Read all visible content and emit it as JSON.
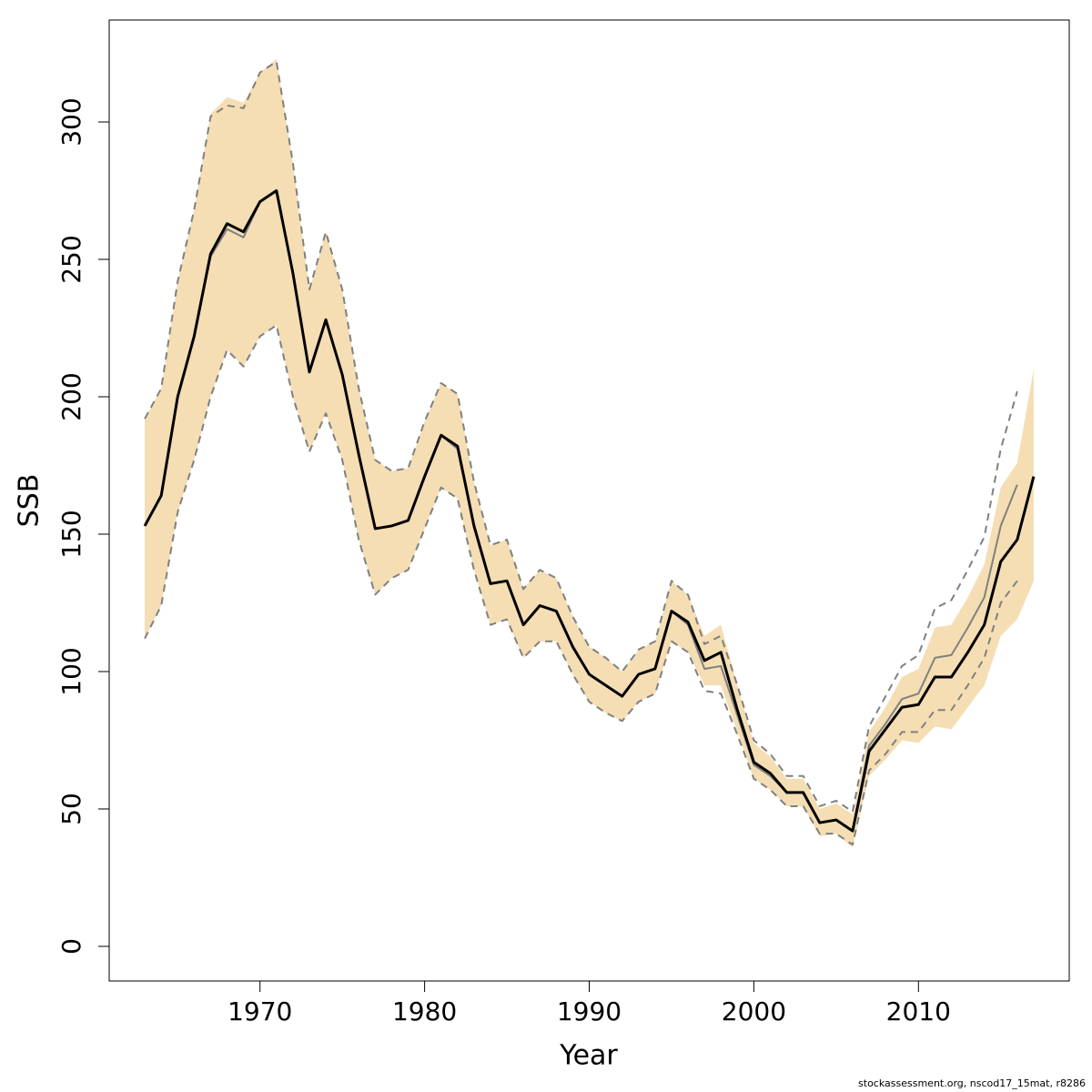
{
  "chart_data": {
    "type": "line",
    "x_label": "Year",
    "y_label": "SSB",
    "footnote": "stockassessment.org, nscod17_15mat, r8286",
    "x": [
      1963,
      1964,
      1965,
      1966,
      1967,
      1968,
      1969,
      1970,
      1971,
      1972,
      1973,
      1974,
      1975,
      1976,
      1977,
      1978,
      1979,
      1980,
      1981,
      1982,
      1983,
      1984,
      1985,
      1986,
      1987,
      1988,
      1989,
      1990,
      1991,
      1992,
      1993,
      1994,
      1995,
      1996,
      1997,
      1998,
      1999,
      2000,
      2001,
      2002,
      2003,
      2004,
      2005,
      2006,
      2007,
      2008,
      2009,
      2010,
      2011,
      2012,
      2013,
      2014,
      2015,
      2016,
      2017
    ],
    "band": {
      "color": "#f5deb3",
      "upper": [
        192,
        203,
        242,
        268,
        303,
        309,
        307,
        318,
        323,
        285,
        239,
        260,
        239,
        203,
        177,
        173,
        174,
        191,
        205,
        201,
        169,
        146,
        148,
        130,
        137,
        134,
        120,
        109,
        105,
        100,
        108,
        111,
        133,
        128,
        113,
        117,
        95,
        74,
        69,
        61,
        61,
        50,
        52,
        48,
        78,
        87,
        98,
        101,
        116,
        117,
        127,
        139,
        167,
        176,
        210
      ],
      "lower": [
        112,
        124,
        158,
        177,
        200,
        217,
        211,
        222,
        226,
        200,
        180,
        194,
        177,
        148,
        128,
        134,
        137,
        152,
        167,
        163,
        137,
        117,
        119,
        105,
        111,
        111,
        99,
        89,
        85,
        82,
        89,
        92,
        111,
        107,
        95,
        95,
        78,
        61,
        57,
        51,
        51,
        40,
        41,
        36,
        62,
        68,
        75,
        74,
        80,
        79,
        87,
        95,
        113,
        119,
        133
      ]
    },
    "series": [
      {
        "color": "#808080",
        "dashed": true,
        "width": 2,
        "values": [
          192,
          203,
          242,
          268,
          302,
          306,
          305,
          318,
          322,
          285,
          239,
          260,
          239,
          203,
          177,
          173,
          174,
          191,
          205,
          201,
          169,
          146,
          148,
          130,
          137,
          134,
          120,
          109,
          105,
          100,
          108,
          111,
          133,
          128,
          110,
          113,
          95,
          75,
          70,
          62,
          62,
          51,
          53,
          49,
          80,
          91,
          102,
          106,
          123,
          126,
          137,
          149,
          181,
          202,
          null
        ]
      },
      {
        "color": "#808080",
        "dashed": true,
        "width": 2,
        "values": [
          112,
          124,
          158,
          177,
          200,
          217,
          211,
          222,
          226,
          200,
          180,
          194,
          177,
          148,
          128,
          134,
          137,
          152,
          167,
          163,
          137,
          117,
          119,
          105,
          111,
          111,
          99,
          89,
          85,
          82,
          89,
          92,
          111,
          107,
          93,
          92,
          77,
          61,
          57,
          51,
          51,
          41,
          41,
          37,
          64,
          70,
          78,
          78,
          86,
          86,
          95,
          105,
          125,
          133,
          null
        ]
      },
      {
        "color": "#808080",
        "dashed": false,
        "width": 2,
        "values": [
          153,
          164,
          200,
          222,
          251,
          261,
          258,
          271,
          275,
          245,
          209,
          228,
          208,
          179,
          152,
          153,
          155,
          171,
          186,
          181,
          153,
          132,
          133,
          117,
          124,
          122,
          109,
          99,
          95,
          91,
          99,
          101,
          122,
          117,
          101,
          102,
          84,
          66,
          62,
          56,
          56,
          45,
          46,
          42,
          73,
          81,
          90,
          92,
          105,
          106,
          116,
          127,
          153,
          168,
          null
        ]
      },
      {
        "color": "#000000",
        "dashed": false,
        "width": 3,
        "values": [
          153,
          164,
          200,
          222,
          252,
          263,
          260,
          271,
          275,
          245,
          209,
          228,
          208,
          179,
          152,
          153,
          155,
          171,
          186,
          182,
          153,
          132,
          133,
          117,
          124,
          122,
          109,
          99,
          95,
          91,
          99,
          101,
          122,
          118,
          104,
          107,
          86,
          67,
          63,
          56,
          56,
          45,
          46,
          42,
          71,
          79,
          87,
          88,
          98,
          98,
          107,
          117,
          140,
          148,
          171
        ]
      }
    ],
    "xlim": [
      1960.84,
      2019.16
    ],
    "ylim": [
      -12.6,
      337.1
    ],
    "xticks": [
      1970,
      1980,
      1990,
      2000,
      2010
    ],
    "yticks": [
      0,
      50,
      100,
      150,
      200,
      250,
      300
    ]
  }
}
